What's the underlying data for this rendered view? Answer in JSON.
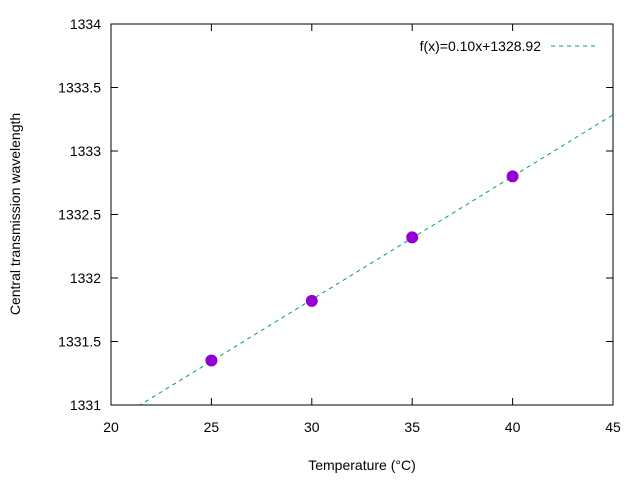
{
  "chart_data": {
    "type": "scatter",
    "title": "",
    "xlabel": "Temperature (°C)",
    "ylabel": "Central transmission wavelength",
    "xlim": [
      20,
      45
    ],
    "ylim": [
      1331,
      1334
    ],
    "xticks": [
      "20",
      "25",
      "30",
      "35",
      "40",
      "45"
    ],
    "yticks": [
      "1331",
      "1331.5",
      "1332",
      "1332.5",
      "1333",
      "1333.5",
      "1334"
    ],
    "grid": false,
    "legend_position": "top-right",
    "series": [
      {
        "x": [
          25,
          30,
          35,
          40
        ],
        "y": [
          1331.35,
          1331.82,
          1332.32,
          1332.8
        ],
        "color": "#9400d3",
        "marker": "circle"
      },
      {
        "name": "f(x)=0.10x+1328.92",
        "type": "line",
        "style": "dashed",
        "color": "#009e73",
        "slope": 0.097,
        "intercept": 1328.92
      }
    ]
  }
}
